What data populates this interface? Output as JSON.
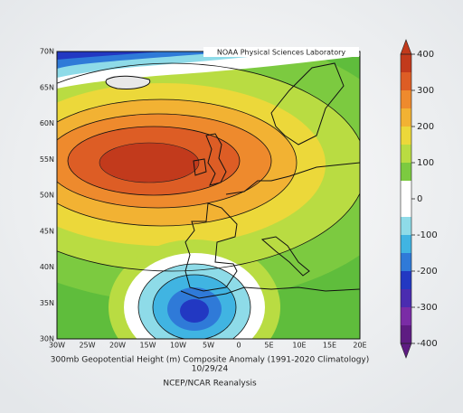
{
  "map": {
    "banner": "NOAA Physical Sciences Laboratory",
    "lat_labels": [
      "70N",
      "65N",
      "60N",
      "55N",
      "50N",
      "45N",
      "40N",
      "35N",
      "30N"
    ],
    "lon_labels": [
      "30W",
      "25W",
      "20W",
      "15W",
      "10W",
      "5W",
      "0",
      "5E",
      "10E",
      "15E",
      "20E"
    ],
    "caption": [
      "300mb Geopotential Height (m) Composite Anomaly (1991-2020 Climatology)",
      "10/29/24",
      "NCEP/NCAR Reanalysis"
    ]
  },
  "colorbar": {
    "ticks": [
      400,
      300,
      200,
      100,
      0,
      -100,
      -200,
      -300,
      -400
    ],
    "colors": [
      "#c23a1c",
      "#dd5d25",
      "#ee8a2d",
      "#f2b233",
      "#ecd83a",
      "#b9dc42",
      "#7cca40",
      "#ffffff",
      "#ffffff",
      "#8edbe8",
      "#40b4e2",
      "#2f7ad8",
      "#2238c2",
      "#4a2cb0",
      "#7a2ca6",
      "#5e1c82"
    ]
  }
}
